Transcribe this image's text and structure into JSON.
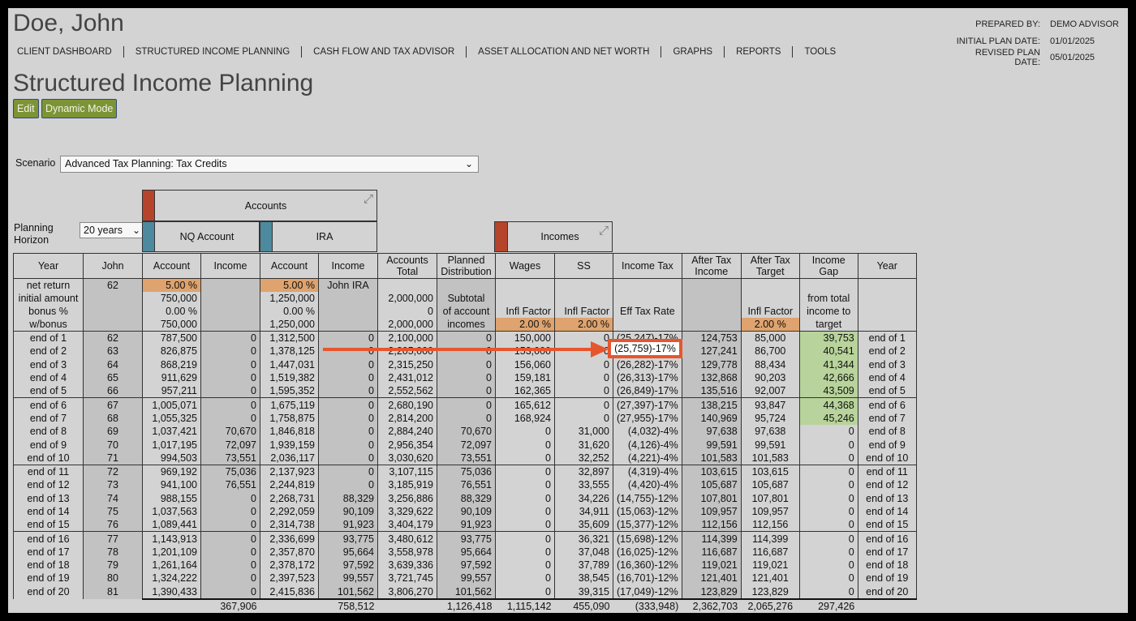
{
  "client": {
    "name": "Doe, John"
  },
  "plan_info": [
    {
      "label": "PREPARED BY:",
      "value": "DEMO ADVISOR"
    },
    {
      "label": "INITIAL PLAN DATE:",
      "value": "01/01/2025"
    },
    {
      "label": "REVISED PLAN DATE:",
      "value": "05/01/2025"
    }
  ],
  "nav": [
    "CLIENT DASHBOARD",
    "STRUCTURED INCOME PLANNING",
    "CASH FLOW AND TAX ADVISOR",
    "ASSET ALLOCATION AND NET WORTH",
    "GRAPHS",
    "REPORTS",
    "TOOLS"
  ],
  "page": {
    "title": "Structured Income Planning"
  },
  "buttons": {
    "edit": "Edit",
    "dynamic": "Dynamic Mode"
  },
  "scenario": {
    "label": "Scenario",
    "value": "Advanced Tax Planning: Tax Credits"
  },
  "horizon": {
    "label_line1": "Planning",
    "label_line2": "Horizon",
    "value": "20 years"
  },
  "groups": {
    "accounts": "Accounts",
    "nq_account": "NQ Account",
    "ira": "IRA",
    "incomes": "Incomes"
  },
  "colors": {
    "accounts_swatch": "#b5442b",
    "nq_swatch": "#4d8aa0",
    "ira_swatch": "#4d8aa0",
    "incomes_swatch": "#b5442b",
    "orange_cell": "#dea36e",
    "green_cell": "#b8d39b",
    "highlight_border": "#e6562e"
  },
  "icons": {
    "chevron": "chevron-down-icon",
    "compress": "compress-icon",
    "arrow": "arrow-right-icon"
  },
  "headers": [
    "Year",
    "John",
    "Account",
    "Income",
    "Account",
    "Income",
    "Accounts Total",
    "Planned Distribution",
    "Wages",
    "SS",
    "Income Tax",
    "After Tax Income",
    "After Tax Target",
    "Income Gap",
    "Year"
  ],
  "params": [
    [
      "net return",
      "62",
      "5.00  %",
      "",
      "5.00  %",
      "John IRA",
      "",
      "",
      "",
      "",
      "",
      "",
      "",
      "",
      ""
    ],
    [
      "initial amount",
      "",
      "750,000",
      "",
      "1,250,000",
      "",
      "2,000,000",
      "Subtotal",
      "",
      "",
      "",
      "",
      "",
      "from total",
      ""
    ],
    [
      "bonus %",
      "",
      "0.00  %",
      "",
      "0.00  %",
      "",
      "0",
      "of account",
      "Infl Factor",
      "Infl Factor",
      "Eff Tax Rate",
      "",
      "Infl Factor",
      "income to",
      ""
    ],
    [
      "w/bonus",
      "",
      "750,000",
      "",
      "1,250,000",
      "",
      "2,000,000",
      "incomes",
      "2.00  %",
      "2.00  %",
      "",
      "",
      "2.00  %",
      "target",
      ""
    ]
  ],
  "rows": [
    [
      "end of 1",
      "62",
      "787,500",
      "0",
      "1,312,500",
      "0",
      "2,100,000",
      "0",
      "150,000",
      "0",
      "(25,247)-17%",
      "124,753",
      "85,000",
      "39,753",
      "end of 1"
    ],
    [
      "end of 2",
      "63",
      "826,875",
      "0",
      "1,378,125",
      "0",
      "2,205,000",
      "0",
      "153,000",
      "0",
      "(25,759)-17%",
      "127,241",
      "86,700",
      "40,541",
      "end of 2"
    ],
    [
      "end of 3",
      "64",
      "868,219",
      "0",
      "1,447,031",
      "0",
      "2,315,250",
      "0",
      "156,060",
      "0",
      "(26,282)-17%",
      "129,778",
      "88,434",
      "41,344",
      "end of 3"
    ],
    [
      "end of 4",
      "65",
      "911,629",
      "0",
      "1,519,382",
      "0",
      "2,431,012",
      "0",
      "159,181",
      "0",
      "(26,313)-17%",
      "132,868",
      "90,203",
      "42,666",
      "end of 4"
    ],
    [
      "end of 5",
      "66",
      "957,211",
      "0",
      "1,595,352",
      "0",
      "2,552,562",
      "0",
      "162,365",
      "0",
      "(26,849)-17%",
      "135,516",
      "92,007",
      "43,509",
      "end of 5"
    ],
    [
      "end of 6",
      "67",
      "1,005,071",
      "0",
      "1,675,119",
      "0",
      "2,680,190",
      "0",
      "165,612",
      "0",
      "(27,397)-17%",
      "138,215",
      "93,847",
      "44,368",
      "end of 6"
    ],
    [
      "end of 7",
      "68",
      "1,055,325",
      "0",
      "1,758,875",
      "0",
      "2,814,200",
      "0",
      "168,924",
      "0",
      "(27,955)-17%",
      "140,969",
      "95,724",
      "45,246",
      "end of 7"
    ],
    [
      "end of 8",
      "69",
      "1,037,421",
      "70,670",
      "1,846,818",
      "0",
      "2,884,240",
      "70,670",
      "0",
      "31,000",
      "(4,032)-4%",
      "97,638",
      "97,638",
      "0",
      "end of 8"
    ],
    [
      "end of 9",
      "70",
      "1,017,195",
      "72,097",
      "1,939,159",
      "0",
      "2,956,354",
      "72,097",
      "0",
      "31,620",
      "(4,126)-4%",
      "99,591",
      "99,591",
      "0",
      "end of 9"
    ],
    [
      "end of 10",
      "71",
      "994,503",
      "73,551",
      "2,036,117",
      "0",
      "3,030,620",
      "73,551",
      "0",
      "32,252",
      "(4,221)-4%",
      "101,583",
      "101,583",
      "0",
      "end of 10"
    ],
    [
      "end of 11",
      "72",
      "969,192",
      "75,036",
      "2,137,923",
      "0",
      "3,107,115",
      "75,036",
      "0",
      "32,897",
      "(4,319)-4%",
      "103,615",
      "103,615",
      "0",
      "end of 11"
    ],
    [
      "end of 12",
      "73",
      "941,100",
      "76,551",
      "2,244,819",
      "0",
      "3,185,919",
      "76,551",
      "0",
      "33,555",
      "(4,420)-4%",
      "105,687",
      "105,687",
      "0",
      "end of 12"
    ],
    [
      "end of 13",
      "74",
      "988,155",
      "0",
      "2,268,731",
      "88,329",
      "3,256,886",
      "88,329",
      "0",
      "34,226",
      "(14,755)-12%",
      "107,801",
      "107,801",
      "0",
      "end of 13"
    ],
    [
      "end of 14",
      "75",
      "1,037,563",
      "0",
      "2,292,059",
      "90,109",
      "3,329,622",
      "90,109",
      "0",
      "34,911",
      "(15,063)-12%",
      "109,957",
      "109,957",
      "0",
      "end of 14"
    ],
    [
      "end of 15",
      "76",
      "1,089,441",
      "0",
      "2,314,738",
      "91,923",
      "3,404,179",
      "91,923",
      "0",
      "35,609",
      "(15,377)-12%",
      "112,156",
      "112,156",
      "0",
      "end of 15"
    ],
    [
      "end of 16",
      "77",
      "1,143,913",
      "0",
      "2,336,699",
      "93,775",
      "3,480,612",
      "93,775",
      "0",
      "36,321",
      "(15,698)-12%",
      "114,399",
      "114,399",
      "0",
      "end of 16"
    ],
    [
      "end of 17",
      "78",
      "1,201,109",
      "0",
      "2,357,870",
      "95,664",
      "3,558,978",
      "95,664",
      "0",
      "37,048",
      "(16,025)-12%",
      "116,687",
      "116,687",
      "0",
      "end of 17"
    ],
    [
      "end of 18",
      "79",
      "1,261,164",
      "0",
      "2,378,172",
      "97,592",
      "3,639,336",
      "97,592",
      "0",
      "37,789",
      "(16,360)-12%",
      "119,021",
      "119,021",
      "0",
      "end of 18"
    ],
    [
      "end of 19",
      "80",
      "1,324,222",
      "0",
      "2,397,523",
      "99,557",
      "3,721,745",
      "99,557",
      "0",
      "38,545",
      "(16,701)-12%",
      "121,401",
      "121,401",
      "0",
      "end of 19"
    ],
    [
      "end of 20",
      "81",
      "1,390,433",
      "0",
      "2,415,836",
      "101,562",
      "3,806,270",
      "101,562",
      "0",
      "39,315",
      "(17,049)-12%",
      "123,829",
      "123,829",
      "0",
      "end of 20"
    ]
  ],
  "totals": [
    "",
    "",
    "",
    "367,906",
    "",
    "758,512",
    "",
    "1,126,418",
    "1,115,142",
    "455,090",
    "(333,948)",
    "2,362,703",
    "2,065,276",
    "297,426",
    ""
  ],
  "highlight": {
    "text": "(25,759)-17%"
  }
}
